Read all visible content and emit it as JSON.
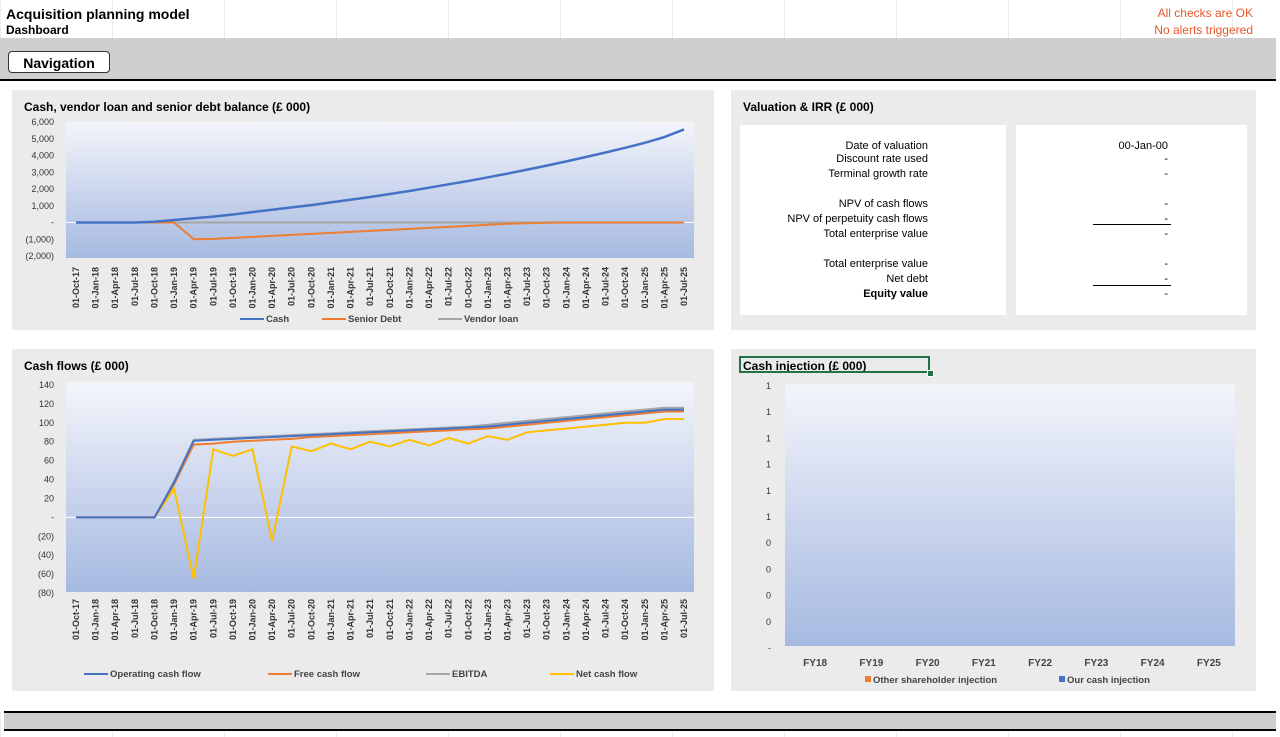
{
  "header": {
    "title": "Acquisition planning model",
    "subtitle": "Dashboard",
    "check_status": "All checks are OK",
    "alert_status": "No alerts triggered",
    "nav_button": "Navigation"
  },
  "colors": {
    "cash": "#4472c4",
    "senior_debt": "#ed7d31",
    "vendor_loan": "#a5a5a5",
    "operating_cash_flow": "#4472c4",
    "free_cash_flow": "#ed7d31",
    "ebitda": "#a5a5a5",
    "net_cash_flow": "#ffc000",
    "status_text": "#e8562a",
    "selection": "#217346"
  },
  "dates": [
    "01-Oct-17",
    "01-Jan-18",
    "01-Apr-18",
    "01-Jul-18",
    "01-Oct-18",
    "01-Jan-19",
    "01-Apr-19",
    "01-Jul-19",
    "01-Oct-19",
    "01-Jan-20",
    "01-Apr-20",
    "01-Jul-20",
    "01-Oct-20",
    "01-Jan-21",
    "01-Apr-21",
    "01-Jul-21",
    "01-Oct-21",
    "01-Jan-22",
    "01-Apr-22",
    "01-Jul-22",
    "01-Oct-22",
    "01-Jan-23",
    "01-Apr-23",
    "01-Jul-23",
    "01-Oct-23",
    "01-Jan-24",
    "01-Apr-24",
    "01-Jul-24",
    "01-Oct-24",
    "01-Jan-25",
    "01-Apr-25",
    "01-Jul-25"
  ],
  "valuation": {
    "title": "Valuation & IRR (£ 000)",
    "rows": [
      {
        "label": "Date of valuation",
        "value": "00-Jan-00",
        "bold": false
      },
      {
        "label": "Discount rate used",
        "value": "-",
        "bold": false
      },
      {
        "label": "Terminal growth rate",
        "value": "-",
        "bold": false
      },
      {
        "label": "NPV of cash flows",
        "value": "-",
        "bold": false
      },
      {
        "label": "NPV of perpetuity cash flows",
        "value": "-",
        "bold": false
      },
      {
        "label": "Total enterprise value",
        "value": "-",
        "bold": false
      },
      {
        "label": "Total enterprise value",
        "value": "-",
        "bold": false
      },
      {
        "label": "Net debt",
        "value": "-",
        "bold": false
      },
      {
        "label": "Equity value",
        "value": "-",
        "bold": true
      }
    ]
  },
  "chart_data": [
    {
      "type": "line",
      "title": "Cash, vendor loan and senior debt balance (£ 000)",
      "yticks": [
        "6,000",
        "5,000",
        "4,000",
        "3,000",
        "2,000",
        "1,000",
        "-",
        "(1,000)",
        "(2,000)"
      ],
      "ylim": [
        -2000,
        6000
      ],
      "series": [
        {
          "name": "Cash",
          "values": [
            0,
            0,
            0,
            0,
            50,
            150,
            250,
            350,
            480,
            620,
            760,
            900,
            1040,
            1200,
            1360,
            1520,
            1700,
            1880,
            2080,
            2280,
            2480,
            2700,
            2920,
            3160,
            3400,
            3650,
            3910,
            4180,
            4460,
            4760,
            5100,
            5560
          ]
        },
        {
          "name": "Senior Debt",
          "values": [
            0,
            0,
            0,
            0,
            0,
            0,
            -1000,
            -980,
            -920,
            -860,
            -800,
            -740,
            -680,
            -620,
            -560,
            -500,
            -440,
            -380,
            -320,
            -260,
            -200,
            -140,
            -80,
            -40,
            -10,
            0,
            0,
            0,
            0,
            0,
            0,
            0
          ]
        },
        {
          "name": "Vendor loan",
          "values": [
            0,
            0,
            0,
            0,
            0,
            0,
            0,
            0,
            0,
            0,
            0,
            0,
            0,
            0,
            0,
            0,
            0,
            0,
            0,
            0,
            0,
            0,
            0,
            0,
            0,
            0,
            0,
            0,
            0,
            0,
            0,
            0
          ]
        }
      ]
    },
    {
      "type": "line",
      "title": "Cash flows (£ 000)",
      "yticks": [
        "140",
        "120",
        "100",
        "80",
        "60",
        "40",
        "20",
        "-",
        "(20)",
        "(40)",
        "(60)",
        "(80)"
      ],
      "ylim": [
        -80,
        140
      ],
      "series": [
        {
          "name": "Operating cash flow",
          "values": [
            0,
            0,
            0,
            0,
            0,
            37,
            81,
            82,
            83,
            84,
            85,
            86,
            87,
            88,
            89,
            90,
            91,
            92,
            93,
            94,
            95,
            96,
            98,
            100,
            102,
            104,
            106,
            108,
            110,
            112,
            114,
            114
          ]
        },
        {
          "name": "Free cash flow",
          "values": [
            0,
            0,
            0,
            0,
            0,
            35,
            77,
            78,
            80,
            81,
            82,
            83,
            85,
            86,
            87,
            88,
            89,
            90,
            91,
            92,
            93,
            94,
            96,
            98,
            100,
            102,
            104,
            106,
            108,
            110,
            112,
            112
          ]
        },
        {
          "name": "EBITDA",
          "values": [
            0,
            0,
            0,
            0,
            0,
            38,
            82,
            83,
            84,
            85,
            86,
            87,
            88,
            89,
            90,
            91,
            92,
            93,
            94,
            95,
            96,
            98,
            100,
            102,
            104,
            106,
            108,
            110,
            112,
            114,
            116,
            116
          ]
        },
        {
          "name": "Net cash flow",
          "values": [
            0,
            0,
            0,
            0,
            0,
            30,
            -65,
            72,
            65,
            72,
            -25,
            75,
            70,
            78,
            72,
            80,
            75,
            82,
            76,
            84,
            78,
            86,
            82,
            90,
            92,
            94,
            96,
            98,
            100,
            100,
            104,
            104
          ]
        }
      ]
    },
    {
      "type": "bar",
      "title": "Cash injection (£ 000)",
      "categories": [
        "FY18",
        "FY19",
        "FY20",
        "FY21",
        "FY22",
        "FY23",
        "FY24",
        "FY25"
      ],
      "yticks": [
        "1",
        "1",
        "1",
        "1",
        "1",
        "1",
        "0",
        "0",
        "0",
        "0",
        "-"
      ],
      "series": [
        {
          "name": "Other shareholder injection",
          "values": [
            0,
            0,
            0,
            0,
            0,
            0,
            0,
            0
          ]
        },
        {
          "name": "Our cash injection",
          "values": [
            0,
            0,
            0,
            0,
            0,
            0,
            0,
            0
          ]
        }
      ]
    }
  ]
}
